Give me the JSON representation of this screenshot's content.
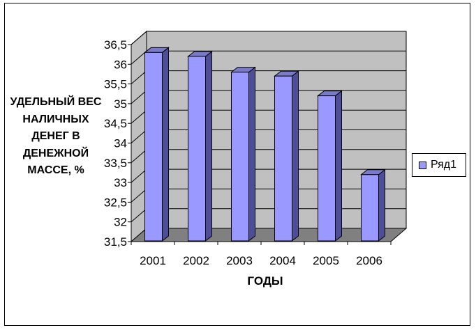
{
  "chart_data": {
    "type": "bar",
    "style": "3d-column",
    "categories": [
      "2001",
      "2002",
      "2003",
      "2004",
      "2005",
      "2006"
    ],
    "series": [
      {
        "name": "Ряд1",
        "values": [
          36.3,
          36.2,
          35.8,
          35.7,
          35.2,
          33.2
        ]
      }
    ],
    "ylabel": "УДЕЛЬНЫЙ ВЕС НАЛИЧНЫХ ДЕНЕГ В ДЕНЕЖНОЙ МАССЕ, %",
    "xlabel": "ГОДЫ",
    "ylim": [
      31.5,
      36.5
    ],
    "yticks": [
      "31,5",
      "32",
      "32,5",
      "33",
      "33,5",
      "34",
      "34,5",
      "35",
      "35,5",
      "36",
      "36,5"
    ],
    "grid": true,
    "legend_position": "right",
    "colors": {
      "bar_front": "#9999ff",
      "bar_side": "#4d4d99",
      "bar_top": "#7a7acc",
      "back_wall": "#c0c0c0",
      "floor": "#808080"
    }
  }
}
